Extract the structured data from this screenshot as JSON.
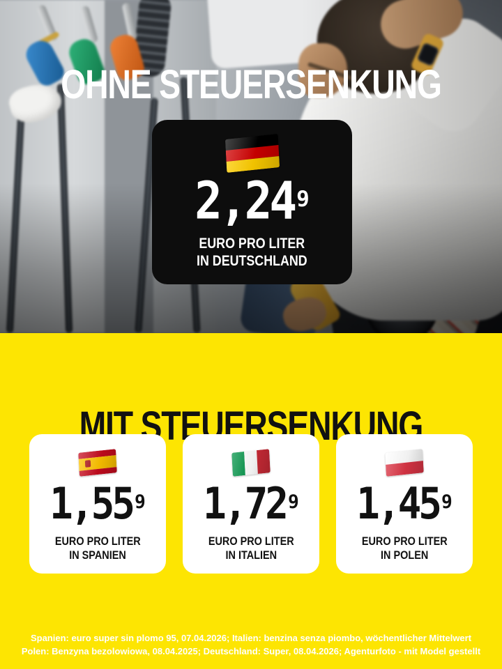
{
  "colors": {
    "background_yellow": "#FDE502",
    "price_card_black": "#0D0D0D",
    "card_white": "#FFFFFF",
    "top_headline_color": "#FFFFFF",
    "bottom_headline_color": "#111111",
    "footnote_color": "#FFFFFF"
  },
  "top": {
    "headline": "OHNE STEUERSENKUNG",
    "price_card": {
      "flag_icon": "germany-flag",
      "price_main": "2,24",
      "price_sup": "9",
      "label_line1": "EURO PRO LITER",
      "label_line2": "IN DEUTSCHLAND"
    }
  },
  "bottom": {
    "headline": "MIT STEUERSENKUNG",
    "cards": [
      {
        "flag_icon": "spain-flag",
        "price_main": "1,55",
        "price_sup": "9",
        "label_line1": "EURO PRO LITER",
        "label_line2": "IN SPANIEN"
      },
      {
        "flag_icon": "italy-flag",
        "price_main": "1,72",
        "price_sup": "9",
        "label_line1": "EURO PRO LITER",
        "label_line2": "IN ITALIEN"
      },
      {
        "flag_icon": "poland-flag",
        "price_main": "1,45",
        "price_sup": "9",
        "label_line1": "EURO PRO LITER",
        "label_line2": "IN POLEN"
      }
    ],
    "footnote_line1": "Spanien: euro super sin plomo 95, 07.04.2026; Italien: benzina senza piombo, wöchentlicher Mittelwert",
    "footnote_line2": "Polen: Benzyna bezolowiowa, 08.04.2025; Deutschland: Super, 08.04.2026; Agenturfoto - mit Model gestellt"
  }
}
